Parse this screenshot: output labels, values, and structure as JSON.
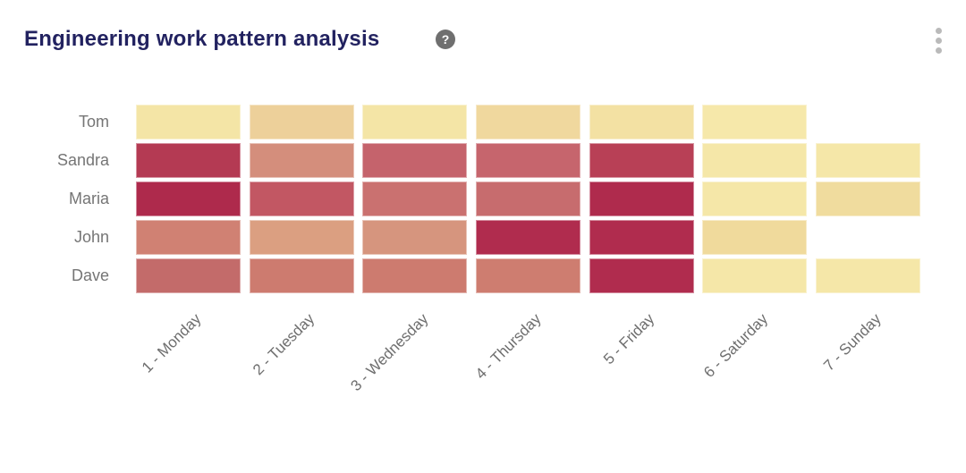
{
  "header": {
    "title": "Engineering work pattern analysis",
    "help_glyph": "?",
    "menu_icon": "kebab-vertical-dots"
  },
  "colors": {
    "background": "#ffffff",
    "title_text": "#222260",
    "axis_label_text": "#757575",
    "help_icon_bg": "#6f6f6f",
    "menu_dots": "#bababa"
  },
  "chart_data": {
    "type": "heatmap",
    "title": "Engineering work pattern analysis",
    "xlabel": "",
    "ylabel": "",
    "legend_position": "none",
    "grid": false,
    "x_labels": [
      "1 - Monday",
      "2 - Tuesday",
      "3 - Wednesday",
      "4 - Thursday",
      "5 - Friday",
      "6 - Saturday",
      "7 - Sunday"
    ],
    "y_labels_top_to_bottom": [
      "Tom",
      "Sandra",
      "Maria",
      "John",
      "Dave"
    ],
    "palette": {
      "low": "#F6E8AA",
      "mid": "#D48E7C",
      "high": "#AE2A4C"
    },
    "cell_colors": [
      [
        "#F4E5A6",
        "#EDD09A",
        "#F4E5A6",
        "#F0D89E",
        "#F3E1A3",
        "#F6E8AA",
        null
      ],
      [
        "#B43A53",
        "#D48E7C",
        "#C5636C",
        "#C6656D",
        "#B84056",
        "#F5E7A8",
        "#F5E7A8"
      ],
      [
        "#AE2A4C",
        "#C25763",
        "#CA7170",
        "#C76C6E",
        "#AF2B4D",
        "#F5E7A8",
        "#F0DC9E"
      ],
      [
        "#D08173",
        "#DB9F81",
        "#D6957E",
        "#B02C4E",
        "#B02C4E",
        "#F0DA9C",
        null
      ],
      [
        "#C36B6A",
        "#CD7B6F",
        "#CD7B6F",
        "#CE7D70",
        "#B02C4E",
        "#F5E7A8",
        "#F5E7A8"
      ]
    ],
    "estimated_intensity_0_to_1": [
      [
        0.08,
        0.2,
        0.08,
        0.15,
        0.1,
        0.05,
        null
      ],
      [
        0.88,
        0.52,
        0.68,
        0.67,
        0.85,
        0.06,
        0.06
      ],
      [
        1.0,
        0.75,
        0.62,
        0.65,
        0.96,
        0.06,
        0.15
      ],
      [
        0.55,
        0.45,
        0.5,
        0.95,
        0.95,
        0.16,
        null
      ],
      [
        0.63,
        0.58,
        0.58,
        0.57,
        0.95,
        0.06,
        0.06
      ]
    ],
    "missing_cells": [
      [
        "Tom",
        "7 - Sunday"
      ],
      [
        "John",
        "7 - Sunday"
      ]
    ]
  }
}
